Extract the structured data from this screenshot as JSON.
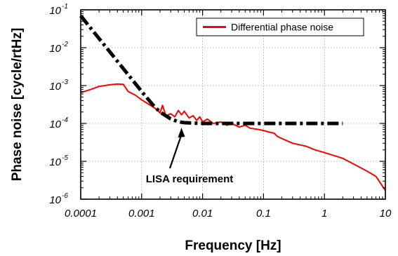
{
  "chart_data": {
    "type": "line",
    "xlabel": "Frequency [Hz]",
    "ylabel": "Phase noise [cycle/rtHz]",
    "xscale": "log",
    "yscale": "log",
    "xlim": [
      0.0001,
      10
    ],
    "ylim": [
      1e-06,
      0.1
    ],
    "grid": true,
    "legend": "top-right",
    "x_ticks": [
      {
        "value": 0.0001,
        "label": "0.0001"
      },
      {
        "value": 0.001,
        "label": "0.001"
      },
      {
        "value": 0.01,
        "label": "0.01"
      },
      {
        "value": 0.1,
        "label": "0.1"
      },
      {
        "value": 1,
        "label": "1"
      },
      {
        "value": 10,
        "label": "10"
      }
    ],
    "y_ticks": [
      {
        "value": 0.1,
        "base": "10",
        "exp": "-1"
      },
      {
        "value": 0.01,
        "base": "10",
        "exp": "-2"
      },
      {
        "value": 0.001,
        "base": "10",
        "exp": "-3"
      },
      {
        "value": 0.0001,
        "base": "10",
        "exp": "-4"
      },
      {
        "value": 1e-05,
        "base": "10",
        "exp": "-5"
      },
      {
        "value": 1e-06,
        "base": "10",
        "exp": "-6"
      }
    ],
    "series": [
      {
        "name": "Differential phase noise",
        "color": "#ff0000",
        "style": "solid",
        "x": [
          0.0001,
          0.00015,
          0.0002,
          0.0003,
          0.0004,
          0.0005,
          0.0006,
          0.0008,
          0.001,
          0.0012,
          0.0015,
          0.0018,
          0.002,
          0.0022,
          0.0025,
          0.003,
          0.0035,
          0.004,
          0.0045,
          0.005,
          0.006,
          0.007,
          0.008,
          0.009,
          0.01,
          0.012,
          0.015,
          0.02,
          0.025,
          0.03,
          0.04,
          0.05,
          0.06,
          0.08,
          0.1,
          0.12,
          0.15,
          0.17,
          0.2,
          0.3,
          0.5,
          0.7,
          1,
          2,
          3,
          5,
          7,
          10
        ],
        "y": [
          0.00065,
          0.0008,
          0.00095,
          0.00105,
          0.0011,
          0.00108,
          0.0007,
          0.00055,
          0.00042,
          0.00035,
          0.00028,
          0.00023,
          0.00019,
          0.0003,
          0.00016,
          0.00018,
          0.00015,
          0.00022,
          0.00017,
          0.00021,
          0.00014,
          0.00016,
          0.00012,
          0.00015,
          0.00011,
          0.00013,
          0.0001,
          0.00011,
          9e-05,
          0.0001,
          8e-05,
          9e-05,
          7.5e-05,
          7e-05,
          6.5e-05,
          6e-05,
          5.5e-05,
          4.5e-05,
          4e-05,
          3e-05,
          2.5e-05,
          2e-05,
          1.7e-05,
          1.2e-05,
          8.5e-06,
          5.5e-06,
          4e-06,
          1.7e-06
        ]
      },
      {
        "name": "LISA requirement",
        "color": "#000000",
        "style": "dash-dot",
        "x": [
          0.0001,
          0.00015,
          0.0002,
          0.0003,
          0.0005,
          0.0007,
          0.001,
          0.0015,
          0.002,
          0.003,
          0.004,
          0.005,
          0.007,
          0.01,
          0.02,
          0.05,
          0.1,
          0.2,
          0.5,
          1,
          2
        ],
        "y": [
          0.07,
          0.031,
          0.0175,
          0.0078,
          0.0028,
          0.00143,
          0.0007,
          0.00032,
          0.0002,
          0.000132,
          0.000111,
          0.000105,
          0.000102,
          0.0001,
          0.0001,
          0.0001,
          0.0001,
          0.0001,
          0.0001,
          0.0001,
          0.0001
        ]
      }
    ],
    "legend_entries": [
      {
        "label": "Differential phase noise",
        "color": "#ff0000"
      }
    ],
    "annotations": [
      {
        "text": "LISA requirement",
        "points_to_x": 0.0045,
        "points_to_y": 0.0001
      }
    ]
  }
}
